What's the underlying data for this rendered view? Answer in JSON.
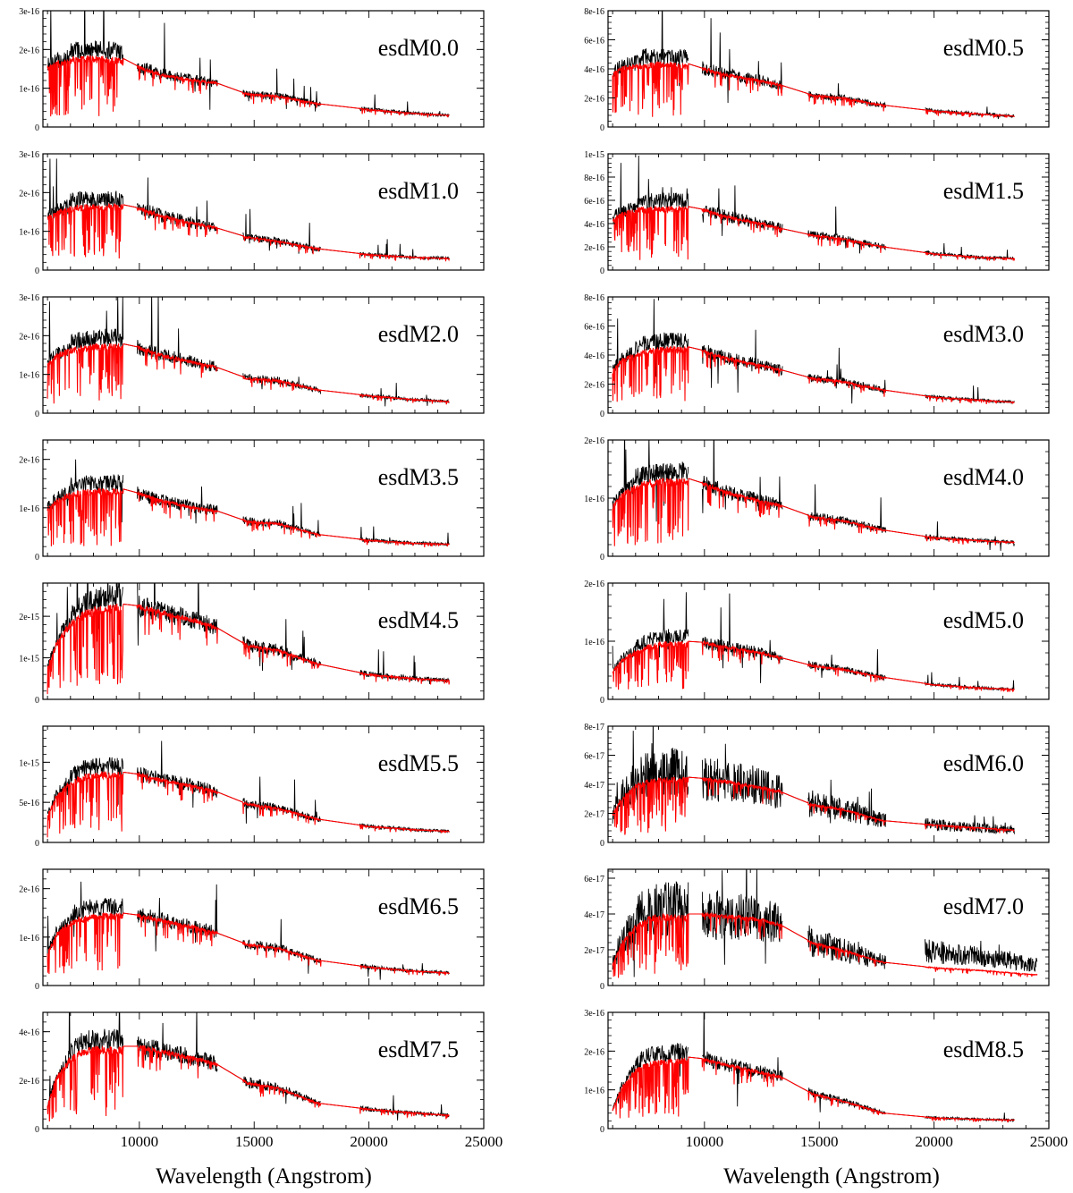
{
  "chart_data": {
    "type": "line",
    "description_note": "16 panels of near-infrared + optical spectra (observed in black, model in red), flux vs wavelength",
    "xlabel": "Wavelength (Angstrom)",
    "xlim": [
      5800,
      25000
    ],
    "x_ticks": [
      10000,
      15000,
      20000,
      25000
    ],
    "series_names": [
      "observed",
      "model"
    ],
    "series_colors": {
      "observed": "#000000",
      "model": "#ff0000"
    },
    "anchors_x": [
      6000,
      6400,
      7000,
      7600,
      8200,
      9200,
      10000,
      11000,
      12500,
      13300,
      14700,
      16000,
      17800,
      20000,
      22000,
      23500,
      24500
    ],
    "panels": [
      {
        "label": "esdM0.0",
        "column": 0,
        "row": 0,
        "ymax": 3e-16,
        "ytick_labels": [
          "0",
          "1e-16",
          "2e-16",
          "3e-16"
        ],
        "ytick_values": [
          0,
          1e-16,
          2e-16,
          3e-16
        ],
        "xmax_data": 23500,
        "anchors_y": [
          1.6e-16,
          1.7e-16,
          1.8e-16,
          1.85e-16,
          1.85e-16,
          1.8e-16,
          1.55e-16,
          1.35e-16,
          1.2e-16,
          1.15e-16,
          8.5e-17,
          8e-17,
          6e-17,
          4.5e-17,
          3.5e-17,
          3e-17,
          2.8e-17
        ]
      },
      {
        "label": "esdM0.5",
        "column": 1,
        "row": 0,
        "ymax": 8e-16,
        "ytick_labels": [
          "0",
          "2e-16",
          "4e-16",
          "6e-16",
          "8e-16"
        ],
        "ytick_values": [
          0,
          2e-16,
          4e-16,
          6e-16,
          8e-16
        ],
        "xmax_data": 23500,
        "anchors_y": [
          3.8e-16,
          4.2e-16,
          4.4e-16,
          4.5e-16,
          4.5e-16,
          4.4e-16,
          4e-16,
          3.6e-16,
          3.2e-16,
          2.9e-16,
          2.2e-16,
          2e-16,
          1.5e-16,
          1.1e-16,
          9e-17,
          7.5e-17,
          7e-17
        ]
      },
      {
        "label": "esdM1.0",
        "column": 0,
        "row": 1,
        "ymax": 3e-16,
        "ytick_labels": [
          "0",
          "1e-16",
          "2e-16",
          "3e-16"
        ],
        "ytick_values": [
          0,
          1e-16,
          2e-16,
          3e-16
        ],
        "xmax_data": 23500,
        "anchors_y": [
          1.4e-16,
          1.55e-16,
          1.65e-16,
          1.7e-16,
          1.7e-16,
          1.7e-16,
          1.6e-16,
          1.4e-16,
          1.2e-16,
          1.1e-16,
          8.5e-17,
          7.5e-17,
          5.5e-17,
          4e-17,
          3.3e-17,
          3e-17,
          2.8e-17
        ]
      },
      {
        "label": "esdM1.5",
        "column": 1,
        "row": 1,
        "ymax": 1e-15,
        "ytick_labels": [
          "0",
          "2e-16",
          "4e-16",
          "6e-16",
          "8e-16",
          "1e-15"
        ],
        "ytick_values": [
          0,
          2e-16,
          4e-16,
          6e-16,
          8e-16,
          1e-15
        ],
        "xmax_data": 23500,
        "anchors_y": [
          4.5e-16,
          5e-16,
          5.4e-16,
          5.5e-16,
          5.5e-16,
          5.5e-16,
          5.2e-16,
          4.6e-16,
          4e-16,
          3.6e-16,
          3e-16,
          2.7e-16,
          2e-16,
          1.4e-16,
          1.1e-16,
          1e-16,
          9.5e-17
        ]
      },
      {
        "label": "esdM2.0",
        "column": 0,
        "row": 2,
        "ymax": 3e-16,
        "ytick_labels": [
          "0",
          "1e-16",
          "2e-16",
          "3e-16"
        ],
        "ytick_values": [
          0,
          1e-16,
          2e-16,
          3e-16
        ],
        "xmax_data": 23500,
        "anchors_y": [
          1.3e-16,
          1.55e-16,
          1.7e-16,
          1.75e-16,
          1.8e-16,
          1.8e-16,
          1.7e-16,
          1.5e-16,
          1.3e-16,
          1.2e-16,
          9e-17,
          8.5e-17,
          6e-17,
          4.5e-17,
          3.5e-17,
          3e-17,
          2.8e-17
        ]
      },
      {
        "label": "esdM3.0",
        "column": 1,
        "row": 2,
        "ymax": 8e-16,
        "ytick_labels": [
          "0",
          "2e-16",
          "4e-16",
          "6e-16",
          "8e-16"
        ],
        "ytick_values": [
          0,
          2e-16,
          4e-16,
          6e-16,
          8e-16
        ],
        "xmax_data": 23500,
        "anchors_y": [
          3e-16,
          3.8e-16,
          4.2e-16,
          4.5e-16,
          4.6e-16,
          4.6e-16,
          4.3e-16,
          3.8e-16,
          3.3e-16,
          3e-16,
          2.4e-16,
          2.2e-16,
          1.6e-16,
          1.1e-16,
          9e-17,
          7.5e-17,
          7e-17
        ]
      },
      {
        "label": "esdM3.5",
        "column": 0,
        "row": 3,
        "ymax": 2.4e-16,
        "ytick_labels": [
          "0",
          "1e-16",
          "2e-16"
        ],
        "ytick_values": [
          0,
          1e-16,
          2e-16
        ],
        "xmax_data": 23500,
        "anchors_y": [
          1e-16,
          1.2e-16,
          1.33e-16,
          1.38e-16,
          1.4e-16,
          1.4e-16,
          1.3e-16,
          1.15e-16,
          1e-16,
          9.5e-17,
          7.2e-17,
          6.8e-17,
          4.5e-17,
          3.3e-17,
          2.7e-17,
          2.5e-17,
          2.4e-17
        ]
      },
      {
        "label": "esdM4.0",
        "column": 1,
        "row": 3,
        "ymax": 2e-16,
        "ytick_labels": [
          "0",
          "1e-16",
          "2e-16"
        ],
        "ytick_values": [
          0,
          1e-16,
          2e-16
        ],
        "xmax_data": 23500,
        "anchors_y": [
          9e-17,
          1.1e-16,
          1.25e-16,
          1.32e-16,
          1.35e-16,
          1.35e-16,
          1.25e-16,
          1.1e-16,
          9.5e-17,
          8.8e-17,
          6.8e-17,
          6.2e-17,
          4.5e-17,
          3.2e-17,
          2.7e-17,
          2.4e-17,
          2.3e-17
        ]
      },
      {
        "label": "esdM4.5",
        "column": 0,
        "row": 4,
        "ymax": 2.8e-15,
        "ytick_labels": [
          "0",
          "1e-15",
          "2e-15"
        ],
        "ytick_values": [
          0,
          1e-15,
          2e-15
        ],
        "xmax_data": 23500,
        "anchors_y": [
          8e-16,
          1.4e-15,
          1.9e-15,
          2.15e-15,
          2.25e-15,
          2.3e-15,
          2.25e-15,
          2.1e-15,
          1.9e-15,
          1.75e-15,
          1.3e-15,
          1.2e-15,
          8.5e-16,
          6e-16,
          5e-16,
          4.5e-16,
          4.2e-16
        ]
      },
      {
        "label": "esdM5.0",
        "column": 1,
        "row": 4,
        "ymax": 2e-16,
        "ytick_labels": [
          "0",
          "1e-16",
          "2e-16"
        ],
        "ytick_values": [
          0,
          1e-16,
          2e-16
        ],
        "xmax_data": 23500,
        "anchors_y": [
          5e-17,
          7e-17,
          8.5e-17,
          9.5e-17,
          1e-16,
          1e-16,
          9.8e-17,
          9e-17,
          8e-17,
          7.2e-17,
          5.8e-17,
          5.2e-17,
          3.8e-17,
          2.5e-17,
          2e-17,
          1.7e-17,
          1.6e-17
        ]
      },
      {
        "label": "esdM5.5",
        "column": 0,
        "row": 5,
        "ymax": 1.45e-15,
        "ytick_labels": [
          "0",
          "5e-16",
          "1e-15"
        ],
        "ytick_values": [
          0,
          5e-16,
          1e-15
        ],
        "xmax_data": 23500,
        "anchors_y": [
          3.5e-16,
          6e-16,
          7.8e-16,
          8.5e-16,
          8.8e-16,
          8.8e-16,
          8.5e-16,
          7.8e-16,
          7e-16,
          6.4e-16,
          4.8e-16,
          4.3e-16,
          2.9e-16,
          2e-16,
          1.6e-16,
          1.4e-16,
          1.35e-16
        ]
      },
      {
        "label": "esdM6.0",
        "column": 1,
        "row": 5,
        "ymax": 8e-17,
        "ytick_labels": [
          "0",
          "2e-17",
          "4e-17",
          "6e-17",
          "8e-17"
        ],
        "ytick_values": [
          0,
          2e-17,
          4e-17,
          6e-17,
          8e-17
        ],
        "xmax_data": 23500,
        "anchors_y": [
          2e-17,
          3.2e-17,
          4e-17,
          4.4e-17,
          4.5e-17,
          4.5e-17,
          4.4e-17,
          4.2e-17,
          3.8e-17,
          3.5e-17,
          2.6e-17,
          2.3e-17,
          1.5e-17,
          1.2e-17,
          1e-17,
          8.5e-18,
          8e-18
        ]
      },
      {
        "label": "esdM6.5",
        "column": 0,
        "row": 6,
        "ymax": 2.4e-16,
        "ytick_labels": [
          "0",
          "1e-16",
          "2e-16"
        ],
        "ytick_values": [
          0,
          1e-16,
          2e-16
        ],
        "xmax_data": 23500,
        "anchors_y": [
          7e-17,
          1.1e-16,
          1.35e-16,
          1.45e-16,
          1.5e-16,
          1.5e-16,
          1.45e-16,
          1.35e-16,
          1.2e-16,
          1.1e-16,
          8.5e-17,
          7.8e-17,
          5.2e-17,
          3.8e-17,
          3e-17,
          2.6e-17,
          2.5e-17
        ]
      },
      {
        "label": "esdM7.0",
        "column": 1,
        "row": 6,
        "ymax": 6.5e-17,
        "ytick_labels": [
          "0",
          "2e-17",
          "4e-17",
          "6e-17"
        ],
        "ytick_values": [
          0,
          2e-17,
          4e-17,
          6e-17
        ],
        "xmax_data": 24500,
        "anchors_y": [
          1.2e-17,
          2.5e-17,
          3.4e-17,
          3.9e-17,
          4e-17,
          4e-17,
          4e-17,
          3.9e-17,
          3.7e-17,
          3.4e-17,
          2.4e-17,
          2e-17,
          1.3e-17,
          1e-17,
          8.5e-18,
          7e-18,
          6e-18
        ]
      },
      {
        "label": "esdM7.5",
        "column": 0,
        "row": 7,
        "ymax": 4.8e-16,
        "ytick_labels": [
          "0",
          "2e-16",
          "4e-16"
        ],
        "ytick_values": [
          0,
          2e-16,
          4e-16
        ],
        "xmax_data": 23500,
        "anchors_y": [
          1e-16,
          2.2e-16,
          3e-16,
          3.35e-16,
          3.4e-16,
          3.4e-16,
          3.4e-16,
          3.2e-16,
          2.9e-16,
          2.7e-16,
          1.9e-16,
          1.7e-16,
          1.05e-16,
          8e-17,
          6.5e-17,
          5.5e-17,
          5.2e-17
        ]
      },
      {
        "label": "esdM8.5",
        "column": 1,
        "row": 7,
        "ymax": 3e-16,
        "ytick_labels": [
          "0",
          "1e-16",
          "2e-16",
          "3e-16"
        ],
        "ytick_values": [
          0,
          1e-16,
          2e-16,
          3e-16
        ],
        "xmax_data": 23500,
        "anchors_y": [
          5e-17,
          1.1e-16,
          1.55e-16,
          1.75e-16,
          1.8e-16,
          1.85e-16,
          1.8e-16,
          1.65e-16,
          1.45e-16,
          1.35e-16,
          9e-17,
          7.2e-17,
          4e-17,
          2.8e-17,
          2.4e-17,
          2.2e-17,
          2.2e-17
        ]
      }
    ]
  }
}
